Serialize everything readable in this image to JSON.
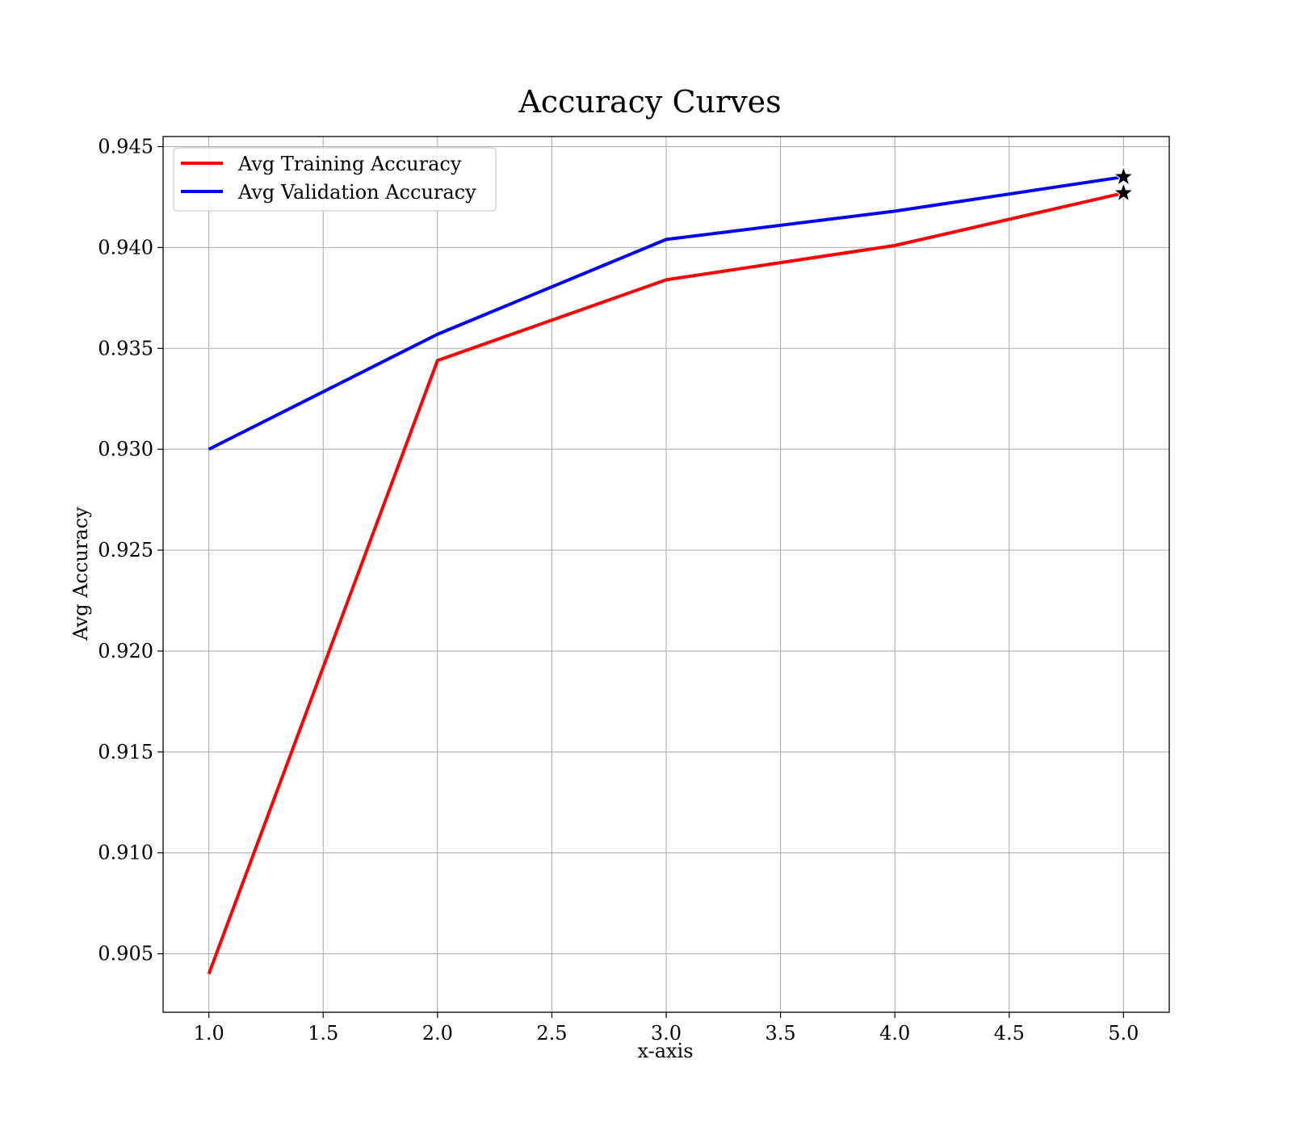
{
  "chart_data": {
    "type": "line",
    "title": "Accuracy Curves",
    "xlabel": "x-axis",
    "ylabel": "Avg Accuracy",
    "x": [
      1.0,
      2.0,
      3.0,
      4.0,
      5.0
    ],
    "xlim": [
      0.8,
      5.2
    ],
    "ylim": [
      0.9021,
      0.9455
    ],
    "xticks": [
      1.0,
      1.5,
      2.0,
      2.5,
      3.0,
      3.5,
      4.0,
      4.5,
      5.0
    ],
    "xtick_labels": [
      "1.0",
      "1.5",
      "2.0",
      "2.5",
      "3.0",
      "3.5",
      "4.0",
      "4.5",
      "5.0"
    ],
    "yticks": [
      0.905,
      0.91,
      0.915,
      0.92,
      0.925,
      0.93,
      0.935,
      0.94,
      0.945
    ],
    "ytick_labels": [
      "0.905",
      "0.910",
      "0.915",
      "0.920",
      "0.925",
      "0.930",
      "0.935",
      "0.940",
      "0.945"
    ],
    "grid": true,
    "legend_position": "top-left",
    "series": [
      {
        "name": "Avg Training Accuracy",
        "color": "#ff0000",
        "values": [
          0.904,
          0.9344,
          0.9384,
          0.9401,
          0.9427
        ],
        "marker_last": "star"
      },
      {
        "name": "Avg Validation Accuracy",
        "color": "#0000ff",
        "values": [
          0.93,
          0.9357,
          0.9404,
          0.9418,
          0.9435
        ],
        "marker_last": "star"
      }
    ]
  }
}
